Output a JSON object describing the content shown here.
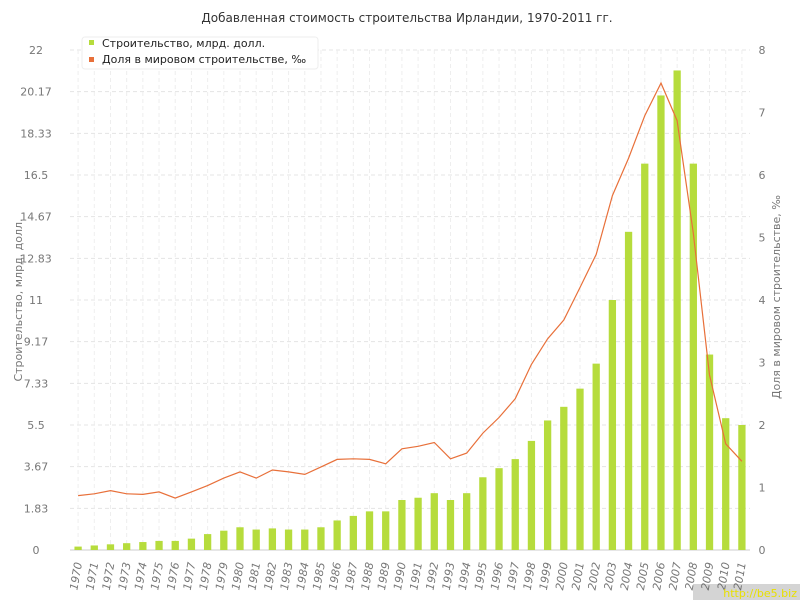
{
  "chart_data": {
    "type": "bar",
    "title": "Добавленная стоимость строительства Ирландии, 1970-2011 гг.",
    "categories": [
      "1970",
      "1971",
      "1972",
      "1973",
      "1974",
      "1975",
      "1976",
      "1977",
      "1978",
      "1979",
      "1980",
      "1981",
      "1982",
      "1983",
      "1984",
      "1985",
      "1986",
      "1987",
      "1988",
      "1989",
      "1990",
      "1991",
      "1992",
      "1993",
      "1994",
      "1995",
      "1996",
      "1997",
      "1998",
      "1999",
      "2000",
      "2001",
      "2002",
      "2003",
      "2004",
      "2005",
      "2006",
      "2007",
      "2008",
      "2009",
      "2010",
      "2011"
    ],
    "series": [
      {
        "name": "Строительство, млрд. долл.",
        "type": "bar",
        "axis": "left",
        "color": "#b6dc3c",
        "values": [
          0.15,
          0.2,
          0.25,
          0.3,
          0.35,
          0.4,
          0.4,
          0.5,
          0.7,
          0.85,
          1.0,
          0.9,
          0.95,
          0.9,
          0.9,
          1.0,
          1.3,
          1.5,
          1.7,
          1.7,
          2.2,
          2.3,
          2.5,
          2.2,
          2.5,
          3.2,
          3.6,
          4.0,
          4.8,
          5.7,
          6.3,
          7.1,
          8.2,
          11.0,
          14.0,
          17.0,
          20.0,
          21.1,
          17.0,
          8.6,
          5.8,
          5.5
        ]
      },
      {
        "name": "Доля в мировом строительстве, ‰",
        "type": "line",
        "axis": "right",
        "color": "#e8703a",
        "values": [
          0.87,
          0.9,
          0.95,
          0.9,
          0.89,
          0.93,
          0.83,
          0.93,
          1.03,
          1.15,
          1.25,
          1.15,
          1.28,
          1.25,
          1.21,
          1.33,
          1.45,
          1.46,
          1.45,
          1.38,
          1.62,
          1.66,
          1.72,
          1.46,
          1.55,
          1.87,
          2.12,
          2.42,
          2.97,
          3.38,
          3.68,
          4.2,
          4.73,
          5.67,
          6.27,
          6.95,
          7.47,
          6.87,
          5.07,
          2.8,
          1.7,
          1.42
        ]
      }
    ],
    "ylabel": "Строительство, млрд. долл.",
    "ylabel_right": "Доля в мировом строительстве, ‰",
    "ylim": [
      0,
      22
    ],
    "ylim_right": [
      0,
      8
    ],
    "yticks": [
      "0",
      "1.83",
      "3.67",
      "5.5",
      "7.33",
      "9.17",
      "11",
      "12.83",
      "14.67",
      "16.5",
      "18.33",
      "20.17",
      "22"
    ],
    "yticks_right": [
      "0",
      "1",
      "2",
      "3",
      "4",
      "5",
      "6",
      "7",
      "8"
    ],
    "grid": true,
    "legend_position": "top-left"
  },
  "watermark": "http://be5.biz"
}
